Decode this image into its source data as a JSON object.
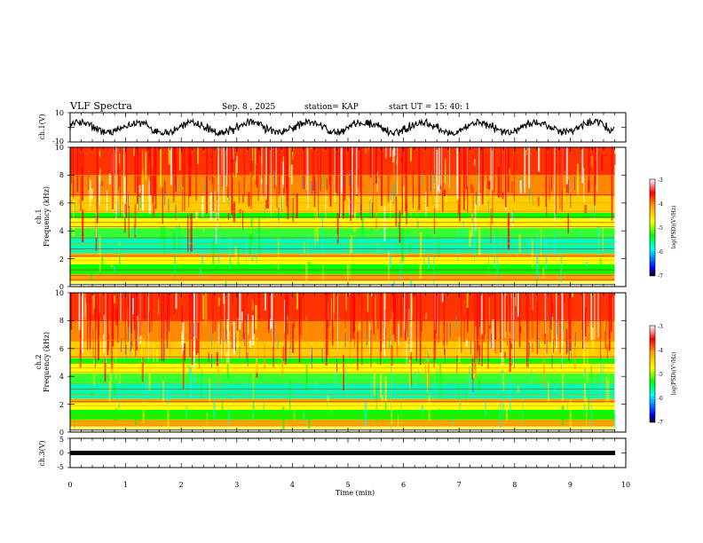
{
  "header": {
    "title": "VLF Spectra",
    "date": "Sep. 8 , 2025",
    "station": "station= KAP",
    "start": "start  UT =   15: 40: 1"
  },
  "colorbar": {
    "label": "log(PSD)(V²/Hz)",
    "ticks": [
      "-3",
      "-4",
      "-5",
      "-6",
      "-7"
    ],
    "colors": [
      "#ffffff",
      "#ff0000",
      "#ffa500",
      "#ffff00",
      "#00ff00",
      "#00ffff",
      "#0000ff",
      "#000000"
    ]
  },
  "chart_data": [
    {
      "type": "line",
      "title": "VLF Spectra",
      "ylabel": "ch.1(V)",
      "ylim": [
        -10,
        10
      ],
      "yticks": [
        "10",
        "-10"
      ],
      "xlim": [
        0,
        10
      ],
      "note": "waveform oscillating roughly between -5 and 5 V over the full 0 to 9.8 min record"
    },
    {
      "type": "heatmap",
      "ylabel": "ch.1\nFrequency (kHz)",
      "ylim": [
        0,
        10
      ],
      "yticks": [
        "10",
        "8",
        "6",
        "4",
        "2",
        "0"
      ],
      "xlim": [
        0,
        10
      ],
      "zlabel": "log(PSD)(V²/Hz)",
      "zlim": [
        -7,
        -3
      ],
      "data_end_min": 9.8
    },
    {
      "type": "heatmap",
      "ylabel": "ch.2\nFrequency (kHz)",
      "ylim": [
        0,
        10
      ],
      "yticks": [
        "10",
        "8",
        "6",
        "4",
        "2",
        "0"
      ],
      "xlim": [
        0,
        10
      ],
      "zlabel": "log(PSD)(V²/Hz)",
      "zlim": [
        -7,
        -3
      ],
      "data_end_min": 9.8
    },
    {
      "type": "line",
      "ylabel": "ch.3(V)",
      "ylim": [
        -5,
        5
      ],
      "yticks": [
        "5",
        "0",
        "-5"
      ],
      "xlim": [
        0,
        10
      ],
      "xlabel": "Time  (min)",
      "xticks": [
        "0",
        "1",
        "2",
        "3",
        "4",
        "5",
        "6",
        "7",
        "8",
        "9",
        "10"
      ],
      "note": "flat band near -1 V over 0 to 9.8 min"
    }
  ]
}
